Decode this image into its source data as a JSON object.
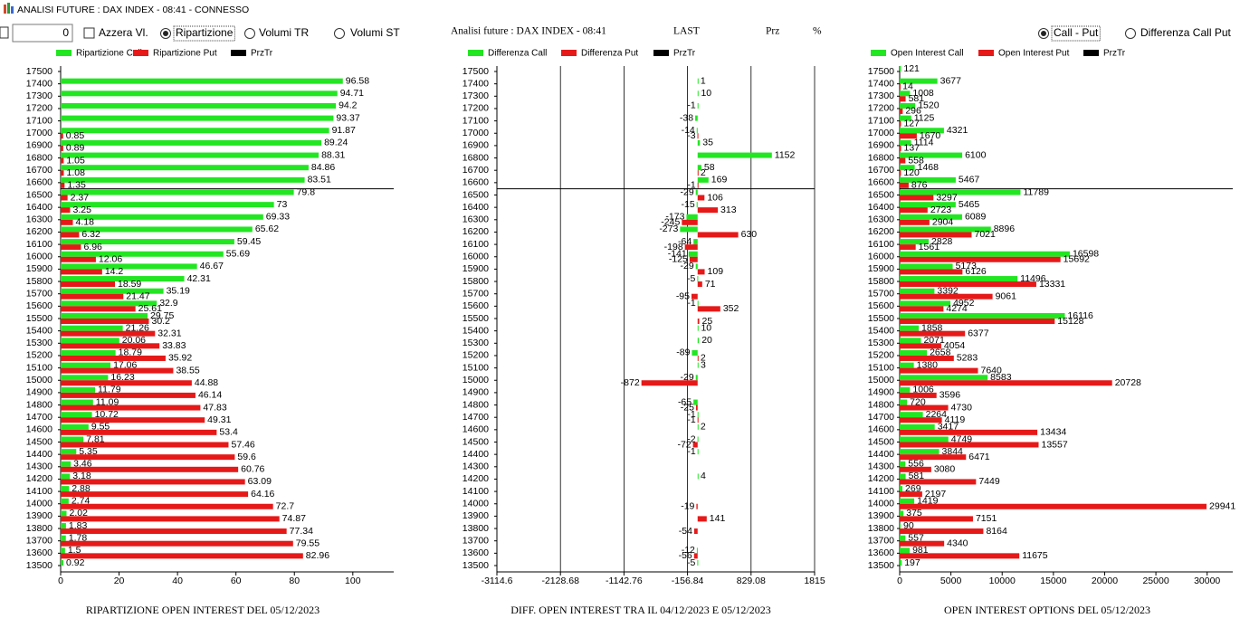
{
  "window_title": "ANALISI FUTURE : DAX INDEX - 08:41 - CONNESSO",
  "controls": {
    "input_value": "0",
    "checkbox": "Azzera Vl.",
    "radios": [
      "Ripartizione",
      "Volumi TR",
      "Volumi ST"
    ],
    "selected": 0
  },
  "middle_header": {
    "title": "Analisi future : DAX INDEX - 08:41",
    "last": "LAST",
    "prz": "Prz",
    "pct": "%"
  },
  "right_controls": {
    "radios": [
      "Call - Put",
      "Differenza Call Put"
    ],
    "selected": 0
  },
  "chart_data": [
    {
      "type": "bar",
      "orientation": "horizontal",
      "title": "RIPARTIZIONE OPEN INTEREST DEL 05/12/2023",
      "categories": [
        17500,
        17400,
        17300,
        17200,
        17100,
        17000,
        16900,
        16800,
        16700,
        16600,
        16500,
        16400,
        16300,
        16200,
        16100,
        16000,
        15900,
        15800,
        15700,
        15600,
        15500,
        15400,
        15300,
        15200,
        15100,
        15000,
        14900,
        14800,
        14700,
        14600,
        14500,
        14400,
        14300,
        14200,
        14100,
        14000,
        13900,
        13800,
        13700,
        13600,
        13500
      ],
      "series": [
        {
          "name": "Ripartizione Call",
          "color": "#22e622",
          "values": [
            null,
            96.58,
            94.71,
            94.2,
            93.37,
            91.87,
            89.24,
            88.31,
            84.86,
            83.51,
            79.8,
            73,
            69.33,
            65.62,
            59.45,
            55.69,
            46.67,
            42.31,
            35.19,
            32.9,
            29.75,
            21.26,
            20.06,
            18.79,
            17.06,
            16.23,
            11.79,
            11.09,
            10.72,
            9.55,
            7.81,
            5.35,
            3.46,
            3.18,
            2.88,
            2.74,
            2.02,
            1.83,
            1.78,
            1.5,
            0.92
          ]
        },
        {
          "name": "Ripartizione Put",
          "color": "#e61919",
          "values": [
            null,
            null,
            null,
            null,
            null,
            0.85,
            0.89,
            1.05,
            1.08,
            1.35,
            2.37,
            3.25,
            4.18,
            6.32,
            6.96,
            12.06,
            14.2,
            18.59,
            21.47,
            25.61,
            30.2,
            32.31,
            33.83,
            35.92,
            38.55,
            44.88,
            46.14,
            47.83,
            49.31,
            53.4,
            57.46,
            59.6,
            60.76,
            63.09,
            64.16,
            72.7,
            74.87,
            77.34,
            79.55,
            82.96,
            null
          ]
        }
      ],
      "price_series": {
        "name": "PrzTr",
        "color": "#000000",
        "value": 16550
      },
      "xlim": [
        0,
        114
      ],
      "xticks": [
        0,
        20,
        40,
        60,
        80,
        100
      ],
      "grid": false
    },
    {
      "type": "bar",
      "orientation": "horizontal",
      "title": "DIFF. OPEN INTEREST TRA IL 04/12/2023 E 05/12/2023",
      "categories": [
        17500,
        17400,
        17300,
        17200,
        17100,
        17000,
        16900,
        16800,
        16700,
        16600,
        16500,
        16400,
        16300,
        16200,
        16100,
        16000,
        15900,
        15800,
        15700,
        15600,
        15500,
        15400,
        15300,
        15200,
        15100,
        15000,
        14900,
        14800,
        14700,
        14600,
        14500,
        14400,
        14300,
        14200,
        14100,
        14000,
        13900,
        13800,
        13700,
        13600,
        13500
      ],
      "series": [
        {
          "name": "Differenza Call",
          "color": "#22e622",
          "values": [
            null,
            1,
            10,
            -1,
            -38,
            -14,
            35,
            1152,
            58,
            169,
            -29,
            -15,
            -173,
            -273,
            -64,
            -141,
            -29,
            -5,
            null,
            -1,
            null,
            10,
            20,
            -89,
            3,
            -29,
            null,
            -65,
            -1,
            2,
            -2,
            -1,
            null,
            4,
            null,
            null,
            null,
            null,
            null,
            -12,
            -5
          ]
        },
        {
          "name": "Differenza Put",
          "color": "#e61919",
          "values": [
            null,
            null,
            null,
            null,
            null,
            -3,
            null,
            null,
            2,
            -1,
            106,
            313,
            -245,
            630,
            -198,
            -125,
            109,
            71,
            -95,
            352,
            25,
            null,
            null,
            2,
            null,
            -872,
            null,
            -25,
            -1,
            null,
            -72,
            null,
            null,
            null,
            null,
            -19,
            141,
            -54,
            null,
            -56,
            null
          ]
        }
      ],
      "price_series": {
        "name": "PrzTr",
        "color": "#000000",
        "value": 16550
      },
      "xlim": [
        -3114.6,
        1815
      ],
      "xticks": [
        -3114.6,
        -2128.68,
        -1142.76,
        -156.84,
        829.08,
        1815
      ],
      "grid": true
    },
    {
      "type": "bar",
      "orientation": "horizontal",
      "title": "OPEN INTEREST OPTIONS DEL 05/12/2023",
      "categories": [
        17500,
        17400,
        17300,
        17200,
        17100,
        17000,
        16900,
        16800,
        16700,
        16600,
        16500,
        16400,
        16300,
        16200,
        16100,
        16000,
        15900,
        15800,
        15700,
        15600,
        15500,
        15400,
        15300,
        15200,
        15100,
        15000,
        14900,
        14800,
        14700,
        14600,
        14500,
        14400,
        14300,
        14200,
        14100,
        14000,
        13900,
        13800,
        13700,
        13600,
        13500
      ],
      "series": [
        {
          "name": "Open Interest Call",
          "color": "#22e622",
          "values": [
            121,
            3677,
            1008,
            1520,
            1125,
            4321,
            1114,
            6100,
            1468,
            5467,
            11789,
            5465,
            6089,
            8896,
            2828,
            16598,
            5173,
            11496,
            3392,
            4952,
            16116,
            1858,
            2071,
            2658,
            1380,
            8583,
            1006,
            720,
            2264,
            3417,
            4749,
            3844,
            556,
            581,
            269,
            1419,
            375,
            90,
            557,
            981,
            197
          ]
        },
        {
          "name": "Open Interest Put",
          "color": "#e61919",
          "values": [
            null,
            14,
            581,
            296,
            127,
            1670,
            137,
            558,
            120,
            876,
            3297,
            2723,
            2904,
            7021,
            1561,
            15692,
            6126,
            13331,
            9061,
            4274,
            15128,
            6377,
            4054,
            5283,
            7640,
            20728,
            3596,
            4730,
            4119,
            13434,
            13557,
            6471,
            3080,
            7449,
            2197,
            29941,
            7151,
            8164,
            4340,
            11675,
            null
          ]
        }
      ],
      "price_series": {
        "name": "PrzTr",
        "color": "#000000",
        "value": 16550
      },
      "xlim": [
        0,
        32500
      ],
      "xticks": [
        0,
        5000,
        10000,
        15000,
        20000,
        25000,
        30000
      ],
      "grid": false
    }
  ]
}
